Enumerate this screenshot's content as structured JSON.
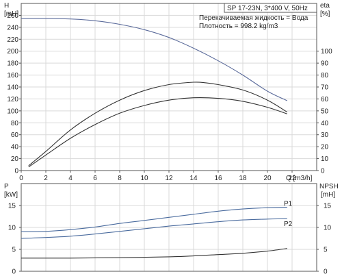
{
  "colors": {
    "head_curve": "#5a6a9a",
    "eff_curve": "#333333",
    "power_curve": "#4a6b9e",
    "npsh_curve": "#333333",
    "grid": "#d9d9d9"
  },
  "header": {
    "model": "SP 17-23N, 3*400 V, 50Hz",
    "liquid": "Перекачиваемая жидкость = Вода",
    "density": "Плотность = 998.2 kg/m3"
  },
  "chart_data": [
    {
      "type": "line",
      "xlabel": "Q [m3/h]",
      "ylabel": "H",
      "ylabel_unit": "[mH]",
      "y2label": "eta",
      "y2label_unit": "[%]",
      "xlim": [
        0,
        24
      ],
      "ylim": [
        0,
        280
      ],
      "y2lim": [
        0,
        140
      ],
      "x_ticks": [
        "0",
        "2",
        "4",
        "6",
        "8",
        "10",
        "12",
        "14",
        "16",
        "18",
        "20",
        "22"
      ],
      "y_ticks": [
        "0",
        "20",
        "40",
        "60",
        "80",
        "100",
        "120",
        "140",
        "160",
        "180",
        "200",
        "220",
        "240",
        "260"
      ],
      "y2_ticks": [
        "0",
        "10",
        "20",
        "30",
        "40",
        "50",
        "60",
        "70",
        "80",
        "90",
        "100"
      ],
      "series": [
        {
          "axis": "left",
          "color_key": "head_curve",
          "x": [
            0,
            2,
            4,
            6,
            8,
            10,
            12,
            14,
            16,
            18,
            20,
            21.6
          ],
          "y": [
            255,
            255,
            254,
            251,
            245,
            236,
            223,
            205,
            184,
            160,
            133,
            117
          ]
        },
        {
          "axis": "right",
          "x": [
            0.6,
            2,
            4,
            6,
            8,
            10,
            12,
            14,
            15,
            16,
            18,
            20,
            21.6
          ],
          "y": [
            4,
            16,
            34,
            48,
            59,
            67,
            72,
            74,
            73.5,
            72,
            67.5,
            59,
            49
          ]
        },
        {
          "axis": "left",
          "x": [
            0.6,
            2,
            4,
            6,
            8,
            10,
            12,
            14,
            16,
            18,
            20,
            21.6
          ],
          "y": [
            6,
            26,
            54,
            77,
            96,
            109,
            118,
            122,
            121,
            116,
            106,
            95
          ]
        }
      ]
    },
    {
      "type": "line",
      "ylabel": "P",
      "ylabel_unit": "[kW]",
      "y2label": "NPSH",
      "y2label_unit": "[mH]",
      "xlim": [
        0,
        24
      ],
      "ylim": [
        0,
        20
      ],
      "y2lim": [
        0,
        20
      ],
      "y_ticks": [
        "0",
        "5",
        "10",
        "15"
      ],
      "y2_ticks": [
        "0",
        "5",
        "10",
        "15"
      ],
      "series": [
        {
          "name": "P1",
          "axis": "left",
          "color_key": "power_curve",
          "x": [
            0,
            2,
            4,
            6,
            8,
            10,
            12,
            14,
            16,
            18,
            20,
            21.6
          ],
          "y": [
            9.0,
            9.1,
            9.5,
            10.1,
            10.9,
            11.6,
            12.3,
            13.0,
            13.7,
            14.2,
            14.5,
            14.6
          ]
        },
        {
          "name": "P2",
          "axis": "left",
          "color_key": "power_curve",
          "x": [
            0,
            2,
            4,
            6,
            8,
            10,
            12,
            14,
            16,
            18,
            20,
            21.6
          ],
          "y": [
            7.5,
            7.7,
            8.0,
            8.5,
            9.1,
            9.7,
            10.3,
            10.8,
            11.3,
            11.7,
            11.9,
            12.0
          ]
        },
        {
          "axis": "right",
          "x": [
            0,
            4,
            8,
            12,
            14,
            16,
            18,
            20,
            21.6
          ],
          "y": [
            3.0,
            3.0,
            3.1,
            3.3,
            3.5,
            3.8,
            4.1,
            4.6,
            5.2
          ]
        }
      ]
    }
  ]
}
